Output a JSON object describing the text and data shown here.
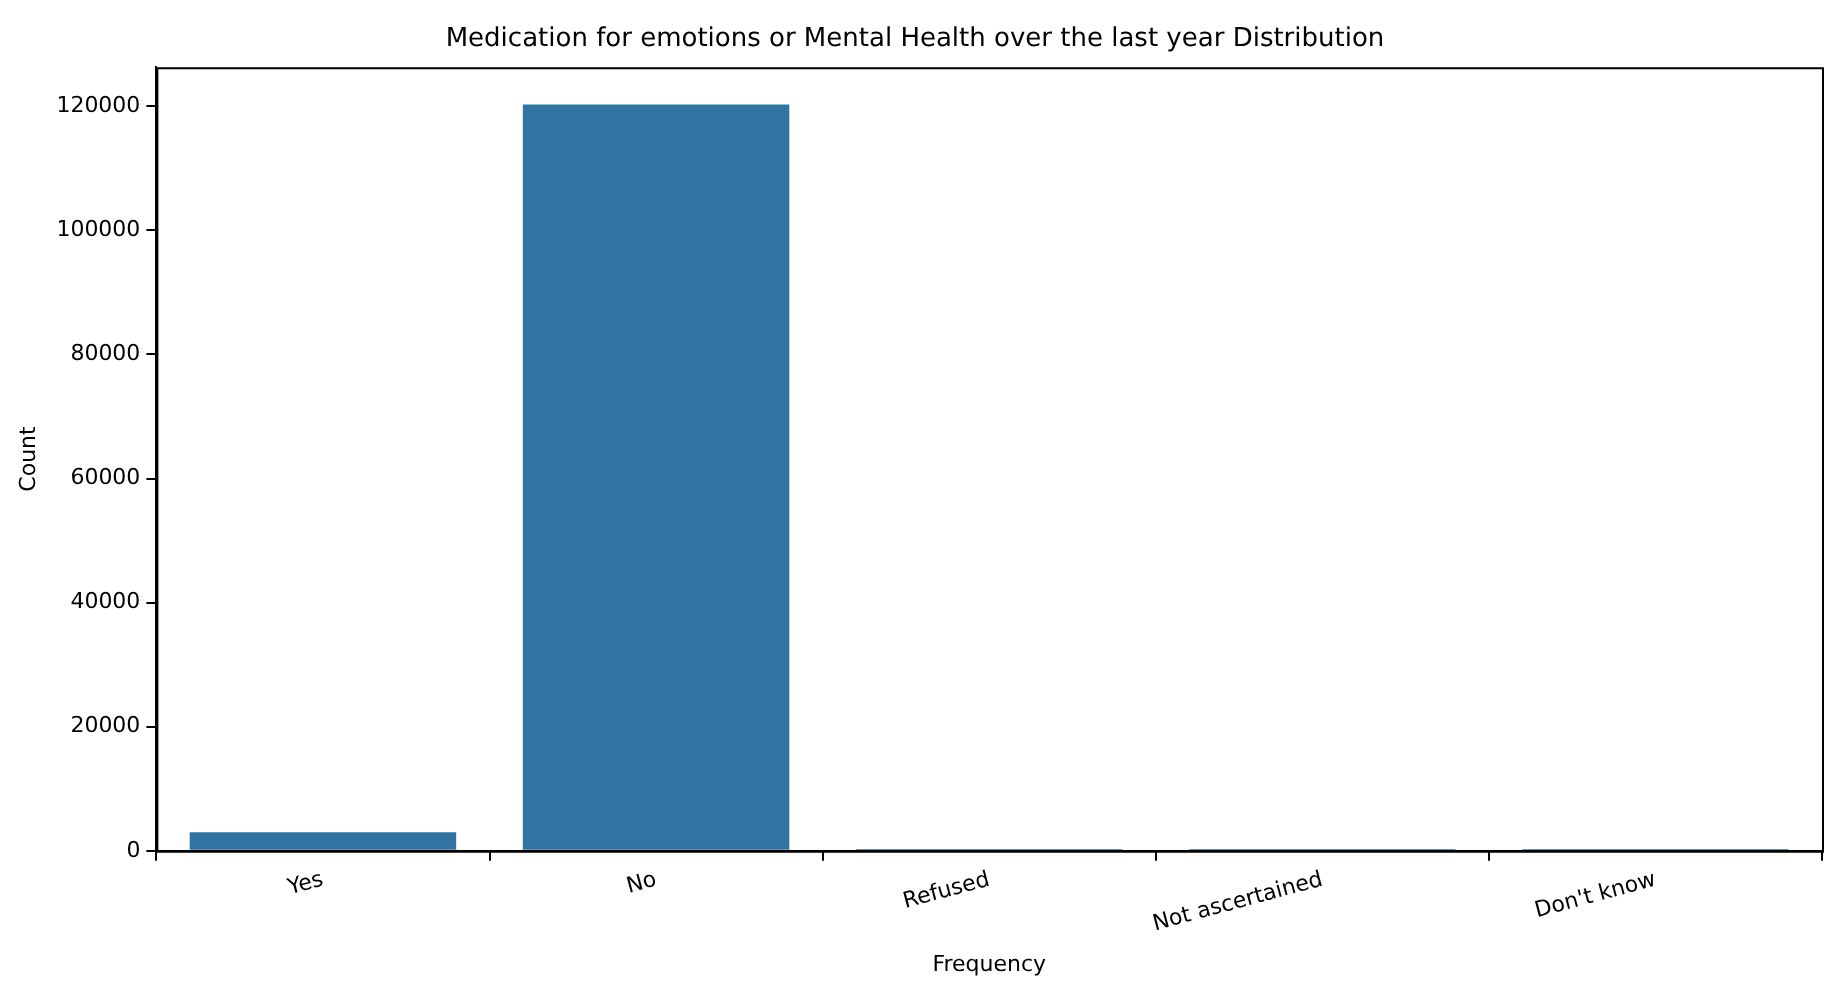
{
  "chart_data": {
    "type": "bar",
    "title": "Medication for emotions or Mental Health over the last year Distribution",
    "xlabel": "Frequency",
    "ylabel": "Count",
    "categories": [
      "Yes",
      "No",
      "Refused",
      "Not ascertained",
      "Don't know"
    ],
    "values": [
      3000,
      120300,
      300,
      300,
      300
    ],
    "color": "#3274a1",
    "ylim": [
      0,
      126300
    ],
    "yticks": [
      0,
      20000,
      40000,
      60000,
      80000,
      100000,
      120000
    ],
    "grid": false,
    "legend": false
  }
}
